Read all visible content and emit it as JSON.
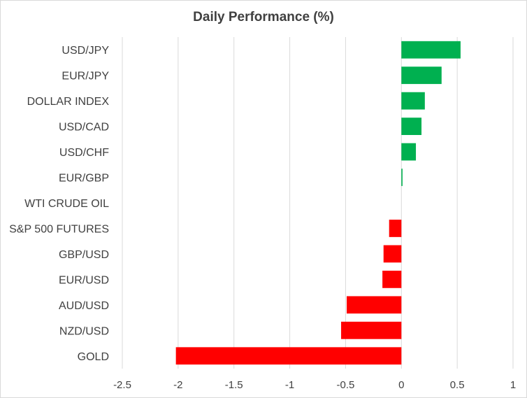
{
  "chart_data": {
    "type": "bar",
    "orientation": "horizontal",
    "title": "Daily Performance (%)",
    "xlabel": "",
    "ylabel": "",
    "xlim": [
      -2.5,
      1
    ],
    "x_ticks": [
      "-2.5",
      "-2",
      "-1.5",
      "-1",
      "-0.5",
      "0",
      "0.5",
      "1"
    ],
    "grid": "vertical",
    "legend": "none",
    "categories": [
      "USD/JPY",
      "EUR/JPY",
      "DOLLAR INDEX",
      "USD/CAD",
      "USD/CHF",
      "EUR/GBP",
      "WTI CRUDE OIL",
      "S&P 500 FUTURES",
      "GBP/USD",
      "EUR/USD",
      "AUD/USD",
      "NZD/USD",
      "GOLD"
    ],
    "values": [
      0.53,
      0.36,
      0.21,
      0.18,
      0.13,
      0.01,
      0.0,
      -0.11,
      -0.16,
      -0.17,
      -0.49,
      -0.54,
      -2.02
    ],
    "colors": {
      "positive": "#00b050",
      "negative": "#ff0000"
    }
  }
}
